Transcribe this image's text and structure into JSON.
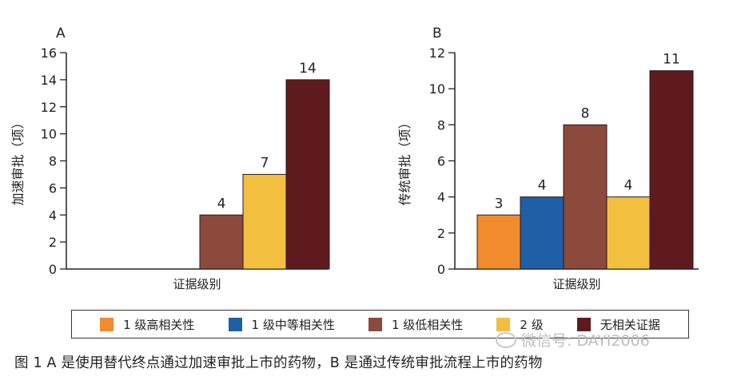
{
  "chart_data": [
    {
      "type": "bar",
      "panel_label": "A",
      "xlabel": "证据级别",
      "ylabel": "加速审批（项）",
      "ylim": [
        0,
        16
      ],
      "yticks": [
        0,
        2,
        4,
        6,
        8,
        10,
        12,
        14,
        16
      ],
      "categories": [
        "1 级低相关性",
        "2 级",
        "无相关证据"
      ],
      "values": [
        4,
        7,
        14
      ],
      "colors": [
        "#8b4a3c",
        "#f2bf3f",
        "#5e1a1d"
      ],
      "data_labels": [
        "4",
        "7",
        "14"
      ],
      "grid": false
    },
    {
      "type": "bar",
      "panel_label": "B",
      "xlabel": "证据级别",
      "ylabel": "传统审批（项）",
      "ylim": [
        0,
        12
      ],
      "yticks": [
        0,
        2,
        4,
        6,
        8,
        10,
        12
      ],
      "categories": [
        "1 级高相关性",
        "1 级中等相关性",
        "1 级低相关性",
        "2 级",
        "无相关证据"
      ],
      "values": [
        3,
        4,
        8,
        4,
        11
      ],
      "colors": [
        "#f08c2e",
        "#1f5fa6",
        "#8b4a3c",
        "#f2bf3f",
        "#5e1a1d"
      ],
      "data_labels": [
        "3",
        "4",
        "8",
        "4",
        "11"
      ],
      "grid": false
    }
  ],
  "legend": {
    "placement": "bottom",
    "items": [
      {
        "label": "1 级高相关性",
        "color": "#f08c2e"
      },
      {
        "label": "1 级中等相关性",
        "color": "#1f5fa6"
      },
      {
        "label": "1 级低相关性",
        "color": "#8b4a3c"
      },
      {
        "label": "2 级",
        "color": "#f2bf3f"
      },
      {
        "label": "无相关证据",
        "color": "#5e1a1d"
      }
    ]
  },
  "caption": "图 1  A 是使用替代终点通过加速审批上市的药物，B 是通过传统审批流程上市的药物",
  "watermark": "微信号: DAYI2006"
}
